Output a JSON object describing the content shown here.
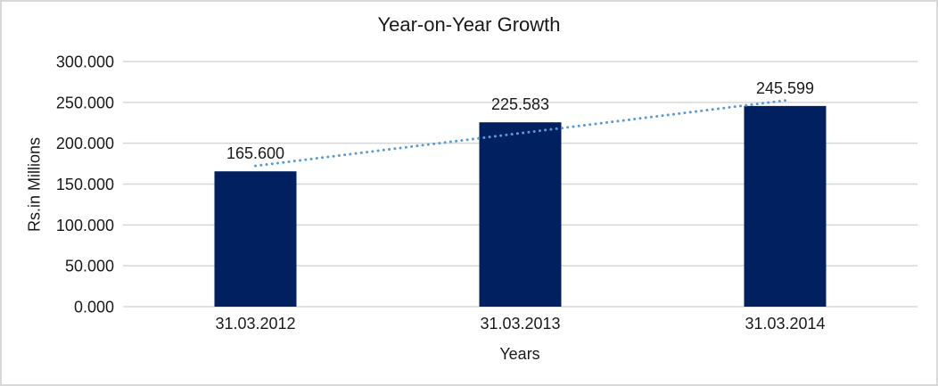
{
  "chart_data": {
    "type": "bar",
    "title": "Year-on-Year Growth",
    "categories": [
      "31.03.2012",
      "31.03.2013",
      "31.03.2014"
    ],
    "values": [
      165.6,
      225.583,
      245.599
    ],
    "value_labels": [
      "165.600",
      "225.583",
      "245.599"
    ],
    "xlabel": "Years",
    "ylabel": "Rs.in Millions",
    "ylim": [
      0,
      300
    ],
    "ytick_step": 50,
    "ytick_labels": [
      "0.000",
      "50.000",
      "100.000",
      "150.000",
      "200.000",
      "250.000",
      "300.000"
    ],
    "grid": true,
    "legend": "none",
    "bar_color": "#002060",
    "trendline": {
      "type": "linear",
      "style": "dotted",
      "color": "#5B9BD5",
      "start_value": 172.3,
      "end_value": 252.3
    }
  },
  "colors": {
    "bar": "#002060",
    "trendline": "#5B9BD5",
    "gridline": "#D7D7D7",
    "text": "#1a1a1a",
    "frame_border": "#D8D8D8",
    "background": "#FFFFFF"
  }
}
